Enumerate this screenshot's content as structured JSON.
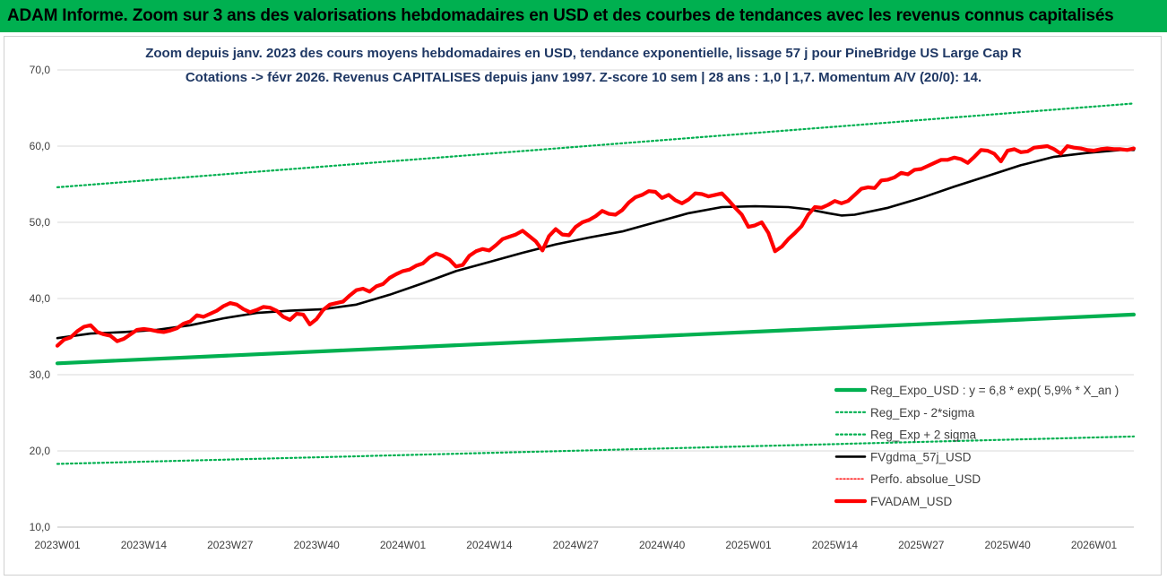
{
  "banner": {
    "title": "ADAM Informe. Zoom sur 3 ans des valorisations hebdomadaires en USD et des courbes de tendances avec les revenus connus capitalisés"
  },
  "chart_data": {
    "type": "line",
    "title_line1": "Zoom depuis janv. 2023 des cours moyens hebdomadaires en USD, tendance exponentielle, lissage 57 j pour PineBridge US Large Cap R",
    "title_line2": "Cotations -> févr 2026. Revenus CAPITALISES depuis janv 1997. Z-score 10 sem | 28 ans : 1,0 | 1,7. Momentum A/V (20/0): 14.",
    "ylim": [
      10,
      70
    ],
    "y_ticks": [
      "10,0",
      "20,0",
      "30,0",
      "40,0",
      "50,0",
      "60,0",
      "70,0"
    ],
    "x_ticks": [
      {
        "week": 0,
        "label": "2023W01"
      },
      {
        "week": 13,
        "label": "2023W14"
      },
      {
        "week": 26,
        "label": "2023W27"
      },
      {
        "week": 39,
        "label": "2023W40"
      },
      {
        "week": 52,
        "label": "2024W01"
      },
      {
        "week": 65,
        "label": "2024W14"
      },
      {
        "week": 78,
        "label": "2024W27"
      },
      {
        "week": 91,
        "label": "2024W40"
      },
      {
        "week": 104,
        "label": "2025W01"
      },
      {
        "week": 117,
        "label": "2025W14"
      },
      {
        "week": 130,
        "label": "2025W27"
      },
      {
        "week": 143,
        "label": "2025W40"
      },
      {
        "week": 156,
        "label": "2026W01"
      }
    ],
    "x_max_week": 162,
    "legend_position": "bottom-right",
    "series": [
      {
        "name": "Reg_Expo_USD : y = 6,8 * exp( 5,9% *  X_an )",
        "color": "#00b050",
        "style": "solid-thick",
        "x": [
          0,
          162
        ],
        "y": [
          31.5,
          37.9
        ]
      },
      {
        "name": "Reg_Exp - 2*sigma",
        "color": "#00b050",
        "style": "dotted",
        "x": [
          0,
          162
        ],
        "y": [
          18.3,
          21.9
        ]
      },
      {
        "name": "Reg_Exp + 2 sigma",
        "color": "#00b050",
        "style": "dotted",
        "x": [
          0,
          162
        ],
        "y": [
          54.6,
          65.6
        ]
      },
      {
        "name": "FVgdma_57j_USD",
        "color": "#000000",
        "style": "solid",
        "x": [
          0,
          5,
          10,
          15,
          20,
          25,
          30,
          35,
          40,
          45,
          50,
          55,
          60,
          65,
          70,
          75,
          80,
          85,
          90,
          95,
          100,
          105,
          110,
          113,
          116,
          118,
          120,
          125,
          130,
          135,
          140,
          145,
          150,
          155,
          160,
          162
        ],
        "y": [
          34.8,
          35.4,
          35.6,
          35.9,
          36.5,
          37.4,
          38.1,
          38.4,
          38.6,
          39.2,
          40.5,
          42.0,
          43.6,
          44.8,
          46.0,
          47.1,
          48.0,
          48.8,
          50.0,
          51.2,
          52.0,
          52.1,
          52.0,
          51.7,
          51.2,
          50.9,
          51.0,
          51.9,
          53.2,
          54.7,
          56.1,
          57.5,
          58.6,
          59.1,
          59.5,
          59.5
        ]
      },
      {
        "name": "Perfo. absolue_USD",
        "color": "#ff0000",
        "style": "dotted-thin",
        "x": [],
        "y": []
      },
      {
        "name": "FVADAM_USD",
        "color": "#ff0000",
        "style": "solid-thick",
        "x": [
          0,
          1,
          2,
          3,
          4,
          5,
          6,
          7,
          8,
          9,
          10,
          11,
          12,
          13,
          14,
          15,
          16,
          17,
          18,
          19,
          20,
          21,
          22,
          23,
          24,
          25,
          26,
          27,
          28,
          29,
          30,
          31,
          32,
          33,
          34,
          35,
          36,
          37,
          38,
          39,
          40,
          41,
          42,
          43,
          44,
          45,
          46,
          47,
          48,
          49,
          50,
          51,
          52,
          53,
          54,
          55,
          56,
          57,
          58,
          59,
          60,
          61,
          62,
          63,
          64,
          65,
          66,
          67,
          68,
          69,
          70,
          71,
          72,
          73,
          74,
          75,
          76,
          77,
          78,
          79,
          80,
          81,
          82,
          83,
          84,
          85,
          86,
          87,
          88,
          89,
          90,
          91,
          92,
          93,
          94,
          95,
          96,
          97,
          98,
          99,
          100,
          101,
          102,
          103,
          104,
          105,
          106,
          107,
          108,
          109,
          110,
          111,
          112,
          113,
          114,
          115,
          116,
          117,
          118,
          119,
          120,
          121,
          122,
          123,
          124,
          125,
          126,
          127,
          128,
          129,
          130,
          131,
          132,
          133,
          134,
          135,
          136,
          137,
          138,
          139,
          140,
          141,
          142,
          143,
          144,
          145,
          146,
          147,
          148,
          149,
          150,
          151,
          152,
          153,
          154,
          155,
          156,
          157,
          158,
          159,
          160,
          161,
          162
        ],
        "y": [
          33.8,
          34.6,
          34.9,
          35.7,
          36.3,
          36.5,
          35.6,
          35.3,
          35.1,
          34.4,
          34.7,
          35.3,
          35.9,
          36.0,
          35.9,
          35.7,
          35.6,
          35.8,
          36.1,
          36.7,
          37.0,
          37.8,
          37.6,
          38.0,
          38.4,
          39.0,
          39.4,
          39.2,
          38.6,
          38.2,
          38.5,
          38.9,
          38.8,
          38.4,
          37.6,
          37.2,
          38.0,
          37.9,
          36.6,
          37.3,
          38.5,
          39.2,
          39.4,
          39.6,
          40.4,
          41.1,
          41.3,
          40.9,
          41.6,
          41.9,
          42.7,
          43.2,
          43.6,
          43.8,
          44.3,
          44.6,
          45.4,
          45.9,
          45.6,
          45.1,
          44.2,
          44.4,
          45.6,
          46.2,
          46.5,
          46.3,
          47.0,
          47.8,
          48.1,
          48.4,
          48.9,
          48.2,
          47.5,
          46.3,
          48.2,
          49.1,
          48.4,
          48.3,
          49.4,
          50.0,
          50.3,
          50.8,
          51.5,
          51.1,
          51.0,
          51.6,
          52.6,
          53.3,
          53.6,
          54.1,
          54.0,
          53.2,
          53.6,
          52.9,
          52.5,
          53.0,
          53.8,
          53.7,
          53.4,
          53.6,
          53.8,
          52.9,
          51.9,
          51.0,
          49.4,
          49.6,
          50.0,
          48.6,
          46.2,
          46.8,
          47.8,
          48.6,
          49.5,
          51.0,
          52.0,
          51.9,
          52.3,
          52.8,
          52.5,
          52.8,
          53.6,
          54.4,
          54.6,
          54.5,
          55.5,
          55.6,
          55.9,
          56.5,
          56.3,
          56.9,
          57.0,
          57.4,
          57.8,
          58.2,
          58.2,
          58.5,
          58.3,
          57.8,
          58.6,
          59.5,
          59.4,
          59.0,
          58.0,
          59.4,
          59.6,
          59.2,
          59.3,
          59.8,
          59.9,
          60.0,
          59.6,
          59.0,
          60.0,
          59.8,
          59.7,
          59.5,
          59.4,
          59.6,
          59.7,
          59.6,
          59.6,
          59.5,
          59.7
        ]
      }
    ]
  }
}
